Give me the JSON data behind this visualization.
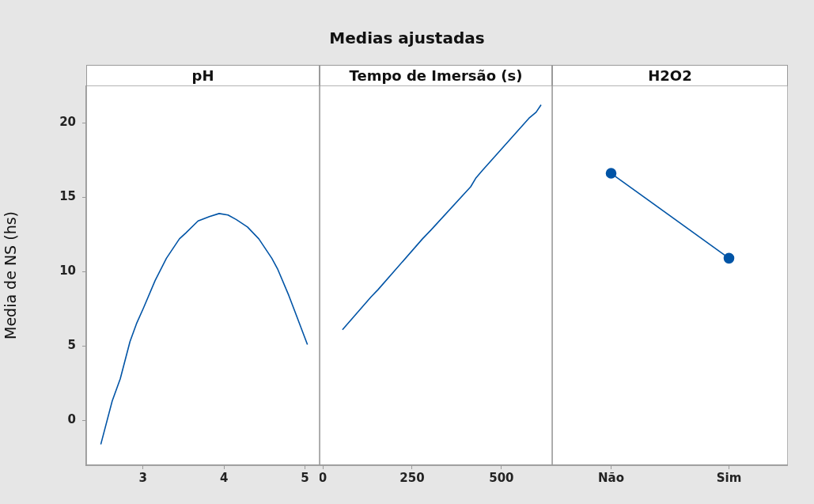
{
  "chart_data": [
    {
      "type": "line",
      "title": "pH",
      "ylabel": "Media de NS (hs)",
      "annotations": [
        "Medias ajustadas"
      ],
      "color": "#0054a6",
      "marker": "none",
      "line_style": "solid",
      "grid": false,
      "x": [
        2.48,
        2.62,
        2.72,
        2.84,
        2.92,
        3.01,
        3.15,
        3.29,
        3.45,
        3.53,
        3.68,
        3.82,
        3.94,
        4.05,
        4.15,
        4.29,
        4.43,
        4.59,
        4.66,
        4.8,
        4.87,
        5.03
      ],
      "values": [
        -1.6,
        1.3,
        2.8,
        5.3,
        6.5,
        7.6,
        9.4,
        10.9,
        12.2,
        12.6,
        13.4,
        13.7,
        13.9,
        13.8,
        13.5,
        13,
        12.2,
        10.9,
        10.2,
        8.4,
        7.4,
        5.1
      ],
      "xlim": [
        2.3,
        5.18
      ],
      "xticks": [
        3,
        4,
        5
      ],
      "ylim": [
        -3,
        22.5
      ],
      "yticks": [
        0,
        5,
        10,
        15,
        20
      ]
    },
    {
      "type": "line",
      "title": "Tempo de Imersão (s)",
      "color": "#0054a6",
      "marker": "none",
      "line_style": "solid",
      "grid": false,
      "tick_labels": "x",
      "x": [
        55,
        135,
        155,
        279,
        303,
        414,
        429,
        447,
        577,
        597,
        611
      ],
      "values": [
        6.1,
        8.3,
        8.8,
        12.2,
        12.8,
        15.7,
        16.3,
        16.8,
        20.3,
        20.7,
        21.2
      ],
      "xlim": [
        -9,
        642
      ],
      "xticks": [
        0,
        250,
        500
      ],
      "ylim": [
        -3,
        22.5
      ]
    },
    {
      "type": "line",
      "title": "H2O2",
      "color": "#0054a6",
      "marker": "circle",
      "line_style": "solid",
      "grid": false,
      "tick_labels": "x",
      "categories": [
        "Não",
        "Sim"
      ],
      "values": [
        16.6,
        10.9
      ],
      "ylim": [
        -3,
        22.5
      ]
    }
  ]
}
